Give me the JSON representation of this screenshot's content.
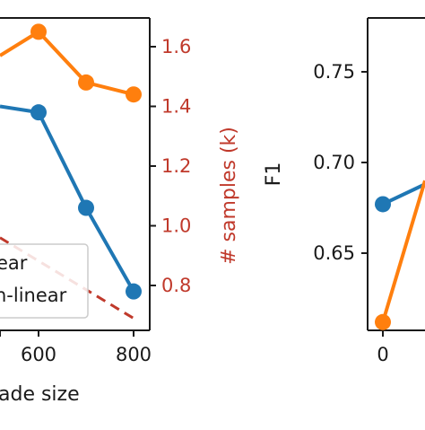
{
  "chart_data": [
    {
      "type": "line",
      "title": "",
      "xlabel": "ade size",
      "ylabel": "",
      "y2label": "# samples (k)",
      "x_ticks": [
        "600",
        "800"
      ],
      "y2_ticks": [
        "0.8",
        "1.0",
        "1.2",
        "1.4",
        "1.6"
      ],
      "y2lim": [
        0.7,
        1.75
      ],
      "legend": {
        "placement": "bottom-right",
        "entries": [
          {
            "label": "ear"
          },
          {
            "label": "n-linear"
          }
        ]
      },
      "series": [
        {
          "color": "#ff7f0e",
          "axis": "y2",
          "x": [
            600,
            700,
            800
          ],
          "values": [
            1.65,
            1.48,
            1.44
          ]
        },
        {
          "color": "#1f77b4",
          "axis": "y2",
          "x": [
            600,
            700,
            800
          ],
          "values": [
            1.38,
            1.06,
            0.78
          ]
        },
        {
          "color": "#c0392b",
          "style": "dashed",
          "axis": "y2",
          "x": [
            800
          ],
          "values": [
            0.69
          ]
        }
      ]
    },
    {
      "type": "line",
      "title": "",
      "xlabel": "",
      "ylabel": "F1",
      "x_ticks": [
        "0"
      ],
      "y_ticks": [
        "0.65",
        "0.70",
        "0.75"
      ],
      "ylim": [
        0.61,
        0.78
      ],
      "series": [
        {
          "color": "#1f77b4",
          "x": [
            0
          ],
          "values": [
            0.677
          ]
        },
        {
          "color": "#ff7f0e",
          "x": [
            0
          ],
          "values": [
            0.612
          ]
        }
      ]
    }
  ],
  "colors": {
    "blue": "#1f77b4",
    "orange": "#ff7f0e",
    "red_axis": "#c0392b",
    "axis": "#1a1a1a"
  }
}
